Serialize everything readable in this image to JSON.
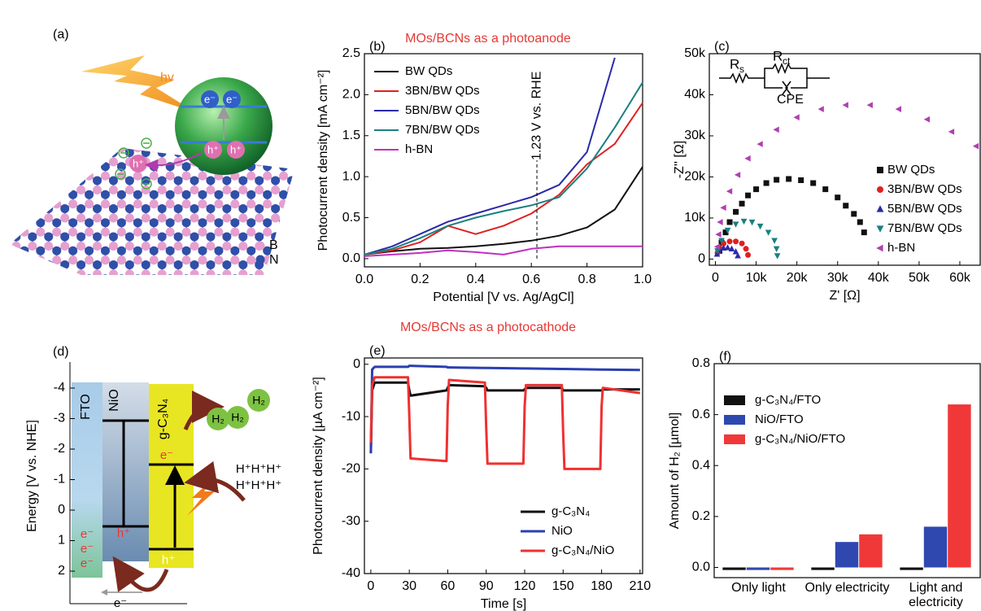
{
  "headings": [
    "MOs/BCNs as a photoanode",
    "MOs/BCNs as a photocathode"
  ],
  "diagram_a": {
    "label": "(a)",
    "light": "hv",
    "electrons": [
      "e⁻",
      "e⁻"
    ],
    "holes": [
      "h⁺",
      "h⁺",
      "h⁺"
    ],
    "legend": [
      "B",
      "N"
    ]
  },
  "diagram_d": {
    "label": "(d)",
    "ylabel": "Energy [V vs. NHE]",
    "yticks": [
      -4,
      -3,
      -2,
      -1,
      0,
      1,
      2
    ],
    "layers": [
      "FTO",
      "NiO",
      "g-C₃N₄"
    ],
    "products": [
      "H₂",
      "H₂",
      "H₂"
    ],
    "protons": [
      "H⁺H⁺H⁺",
      "H⁺H⁺H⁺"
    ],
    "electrons": [
      "e⁻",
      "e⁻",
      "e⁻",
      "e⁻",
      "e⁻"
    ],
    "holes": [
      "h⁺",
      "h⁺"
    ]
  },
  "chart_data": [
    {
      "type": "line",
      "label": "(b)",
      "xlabel": "Potential [V vs. Ag/AgCl]",
      "ylabel": "Photocurrent density [mA cm⁻²]",
      "x": [
        0,
        0.1,
        0.2,
        0.3,
        0.4,
        0.5,
        0.6,
        0.7,
        0.8,
        0.9,
        1.0
      ],
      "series": [
        {
          "name": "BW QDs",
          "color": "#111111",
          "values": [
            0.05,
            0.09,
            0.12,
            0.13,
            0.15,
            0.18,
            0.22,
            0.28,
            0.38,
            0.6,
            1.12
          ]
        },
        {
          "name": "3BN/BW QDs",
          "color": "#e02020",
          "values": [
            0.05,
            0.1,
            0.2,
            0.4,
            0.3,
            0.4,
            0.55,
            0.78,
            1.15,
            1.4,
            1.9
          ]
        },
        {
          "name": "5BN/BW QDs",
          "color": "#2a2aa8",
          "values": [
            0.05,
            0.15,
            0.3,
            0.45,
            0.55,
            0.65,
            0.75,
            0.9,
            1.3,
            2.45,
            null
          ]
        },
        {
          "name": "7BN/BW QDs",
          "color": "#1a8080",
          "values": [
            0.05,
            0.12,
            0.25,
            0.4,
            0.5,
            0.58,
            0.65,
            0.75,
            1.1,
            1.6,
            2.15
          ]
        },
        {
          "name": "h-BN",
          "color": "#c030c0",
          "values": [
            0.03,
            0.05,
            0.07,
            0.1,
            0.08,
            0.05,
            0.12,
            0.15,
            0.15,
            0.15,
            0.15
          ]
        }
      ],
      "xlim": [
        0,
        1
      ],
      "ylim": [
        -0.1,
        2.5
      ],
      "xticks": [
        {
          "value": 0,
          "label": "0.0"
        },
        0.2,
        0.4,
        0.6,
        0.8,
        {
          "value": 1,
          "label": "1.0"
        }
      ],
      "yticks": [
        {
          "value": 0,
          "label": "0.0"
        },
        0.5,
        {
          "value": 1,
          "label": "1.0"
        },
        1.5,
        {
          "value": 2,
          "label": "2.0"
        },
        2.5
      ],
      "annotations": [
        {
          "text": "1.23 V vs. RHE",
          "x": 0.62
        }
      ],
      "legend": "upper left"
    },
    {
      "type": "scatter",
      "label": "(c)",
      "xlabel": "Z' [Ω]",
      "ylabel": "-Z'' [Ω]",
      "circuit_labels": [
        "R",
        "s",
        "R",
        "ct",
        "CPE"
      ],
      "series": [
        {
          "name": "BW QDs",
          "color": "#111111",
          "marker": "square",
          "x": [
            1000,
            1500,
            2500,
            3500,
            5000,
            6500,
            8000,
            10000,
            12500,
            15000,
            18000,
            21000,
            24000,
            27000,
            30000,
            32000,
            34000,
            35500,
            36500
          ],
          "values": [
            2000,
            4000,
            6500,
            9000,
            11500,
            13500,
            15500,
            17000,
            18500,
            19300,
            19500,
            19200,
            18500,
            17000,
            15000,
            13000,
            11000,
            9000,
            6500
          ]
        },
        {
          "name": "3BN/BW QDs",
          "color": "#e02020",
          "marker": "circle",
          "x": [
            500,
            1000,
            2000,
            3500,
            5000,
            6500,
            7500,
            8000
          ],
          "values": [
            1500,
            2800,
            3800,
            4300,
            4300,
            3800,
            2500,
            1000
          ]
        },
        {
          "name": "5BN/BW QDs",
          "color": "#2a2aa8",
          "marker": "triangle-up",
          "x": [
            400,
            1000,
            2000,
            3000,
            4000,
            5000,
            5500
          ],
          "values": [
            1200,
            2200,
            2700,
            2800,
            2500,
            1800,
            800
          ]
        },
        {
          "name": "7BN/BW QDs",
          "color": "#1a8080",
          "marker": "triangle-down",
          "x": [
            500,
            1500,
            3000,
            5000,
            7000,
            9000,
            11000,
            13000,
            14500,
            15000,
            15200
          ],
          "values": [
            2000,
            4500,
            7000,
            8500,
            9200,
            9000,
            8000,
            6500,
            4500,
            2500,
            800
          ]
        },
        {
          "name": "h-BN",
          "color": "#b040b0",
          "marker": "triangle-left",
          "x": [
            500,
            800,
            1200,
            2000,
            3500,
            5500,
            8000,
            11000,
            15000,
            20000,
            26000,
            32000,
            38000,
            45000,
            52000,
            58000,
            64000
          ],
          "values": [
            3000,
            6000,
            9000,
            12500,
            16500,
            20500,
            24500,
            28000,
            31500,
            34500,
            36500,
            37500,
            37500,
            36500,
            34000,
            31000,
            27500
          ]
        }
      ],
      "xlim": [
        -1500,
        65000
      ],
      "ylim": [
        -1500,
        50000
      ],
      "xticks": [
        0,
        {
          "value": 10000,
          "label": "10k"
        },
        {
          "value": 20000,
          "label": "20k"
        },
        {
          "value": 30000,
          "label": "30k"
        },
        {
          "value": 40000,
          "label": "40k"
        },
        {
          "value": 50000,
          "label": "50k"
        },
        {
          "value": 60000,
          "label": "60k"
        }
      ],
      "yticks": [
        0,
        {
          "value": 10000,
          "label": "10k"
        },
        {
          "value": 20000,
          "label": "20k"
        },
        {
          "value": 30000,
          "label": "30k"
        },
        {
          "value": 40000,
          "label": "40k"
        },
        {
          "value": 50000,
          "label": "50k"
        }
      ],
      "legend": "center right"
    },
    {
      "type": "line",
      "label": "(e)",
      "xlabel": "Time [s]",
      "ylabel": "Photocurrent density [µA cm⁻²]",
      "x": [
        0,
        1,
        3,
        29,
        30,
        31,
        59,
        60,
        61,
        89,
        90,
        91,
        119,
        120,
        121,
        149,
        150,
        151,
        179,
        180,
        181,
        210
      ],
      "series": [
        {
          "name": "g-C₃N₄",
          "color": "#111111",
          "values": [
            -17,
            -5,
            -3.5,
            -3.5,
            -5,
            -6,
            -5,
            -4.5,
            -4,
            -4.2,
            -4.5,
            -5,
            -5,
            -4.8,
            -4.5,
            -4.5,
            -5,
            -5,
            -5,
            -5,
            -4.8,
            -4.8
          ]
        },
        {
          "name": "NiO",
          "color": "#2a3fb0",
          "values": [
            -17,
            -1,
            -0.5,
            -0.5,
            -0.3,
            -0.3,
            -0.5,
            -0.6,
            -0.6,
            -0.7,
            -0.7,
            -0.7,
            -0.8,
            -0.8,
            -0.8,
            -0.9,
            -0.9,
            -0.9,
            -1,
            -1,
            -1,
            -1.1
          ]
        },
        {
          "name": "g-C₃N₄/NiO",
          "color": "#f03030",
          "values": [
            -15,
            -4,
            -2.5,
            -2.5,
            -10,
            -18,
            -18.5,
            -8,
            -3,
            -3.5,
            -12,
            -19,
            -19,
            -8,
            -4,
            -4,
            -13,
            -20,
            -20,
            -8,
            -4.5,
            -5.5
          ]
        }
      ],
      "xlim": [
        -5,
        212
      ],
      "ylim": [
        -40,
        1.2
      ],
      "xticks": [
        0,
        30,
        60,
        90,
        120,
        150,
        180,
        210
      ],
      "yticks": [
        -40,
        -30,
        -20,
        -10,
        0
      ],
      "legend": "lower right"
    },
    {
      "type": "bar",
      "label": "(f)",
      "ylabel": "Amount of H₂ [µmol]",
      "categories": [
        "Only light",
        "Only electricity",
        "Light and electricity"
      ],
      "series": [
        {
          "name": "g-C₃N₄/FTO",
          "color": "#111111",
          "values": [
            -0.01,
            -0.01,
            -0.01
          ]
        },
        {
          "name": "NiO/FTO",
          "color": "#2f48b0",
          "values": [
            -0.01,
            0.1,
            0.16
          ]
        },
        {
          "name": "g-C₃N₄/NiO/FTO",
          "color": "#f03838",
          "values": [
            -0.01,
            0.13,
            0.64
          ]
        }
      ],
      "ylim": [
        -0.04,
        0.8
      ],
      "yticks": [
        {
          "value": 0,
          "label": "0.0"
        },
        0.2,
        0.4,
        0.6,
        0.8
      ],
      "legend": "upper left"
    }
  ]
}
